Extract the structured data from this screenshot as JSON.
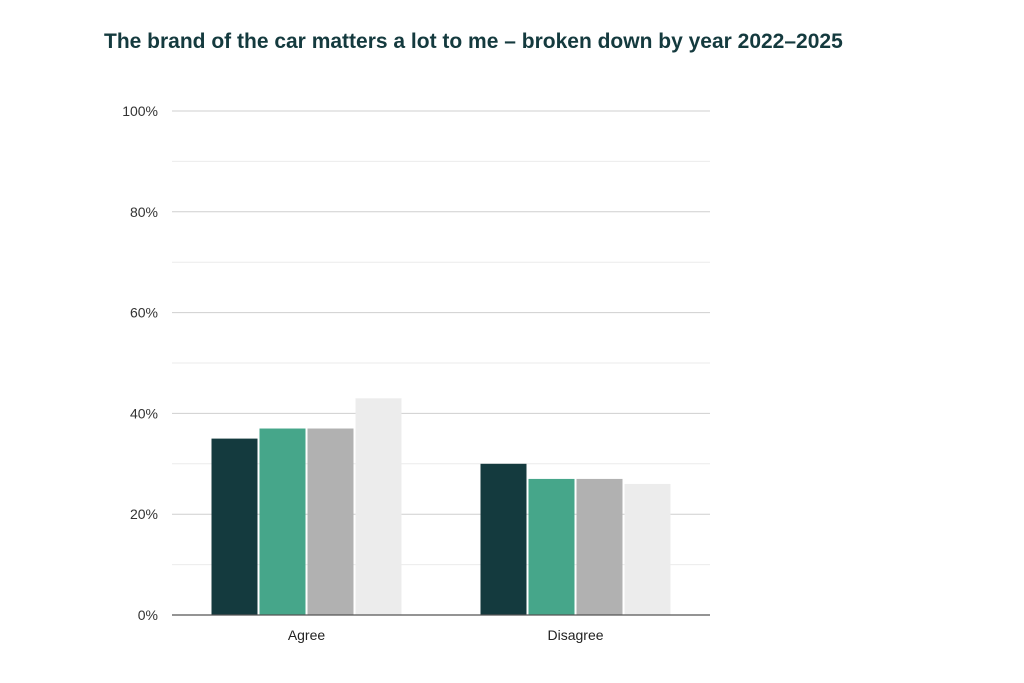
{
  "chart_data": {
    "type": "bar",
    "title": "The brand of the car matters a lot to me – broken down by year 2022–2025",
    "xlabel": "",
    "ylabel": "",
    "categories": [
      "Agree",
      "Disagree"
    ],
    "series": [
      {
        "values": [
          35,
          30
        ],
        "color": "#143a3e"
      },
      {
        "values": [
          37,
          27
        ],
        "color": "#46a68a"
      },
      {
        "values": [
          37,
          27
        ],
        "color": "#b1b1b1"
      },
      {
        "values": [
          43,
          26
        ],
        "color": "#ececec"
      }
    ],
    "ylim": [
      0,
      100
    ],
    "y_ticks": [
      0,
      20,
      40,
      60,
      80,
      100
    ],
    "y_tick_labels": [
      "0%",
      "20%",
      "40%",
      "60%",
      "80%",
      "100%"
    ],
    "grid": true,
    "legend": "none"
  }
}
